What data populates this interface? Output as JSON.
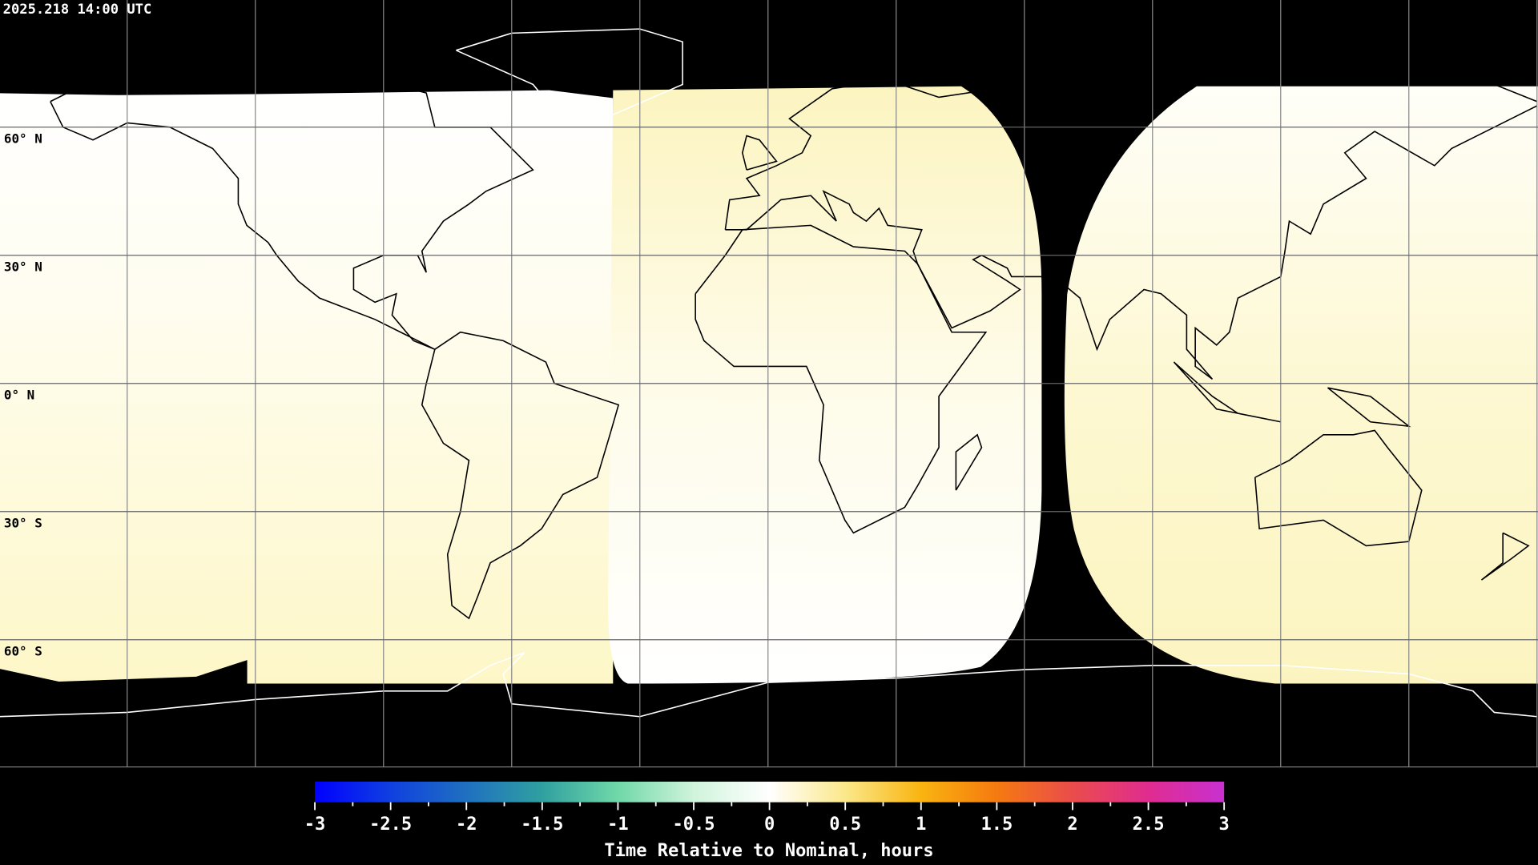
{
  "header": {
    "timestamp": "2025.218 14:00 UTC"
  },
  "map": {
    "projection": "equirectangular",
    "graticule_step_deg": 30,
    "lat_labels": [
      "60° N",
      "30° N",
      "0° N",
      "30° S",
      "60° S"
    ],
    "lat_values": [
      60,
      30,
      0,
      -30,
      -60
    ],
    "background_color": "#000000",
    "no_data_color": "#000000"
  },
  "colorbar": {
    "title": "Time Relative to Nominal, hours",
    "min": -3,
    "max": 3,
    "tick_labels": [
      "-3",
      "-2.5",
      "-2",
      "-1.5",
      "-1",
      "-0.5",
      "0",
      "0.5",
      "1",
      "1.5",
      "2",
      "2.5",
      "3"
    ],
    "tick_values": [
      -3,
      -2.5,
      -2,
      -1.5,
      -1,
      -0.5,
      0,
      0.5,
      1,
      1.5,
      2,
      2.5,
      3
    ],
    "colorscale": [
      {
        "v": -3,
        "c": "#0000ff"
      },
      {
        "v": -2.5,
        "c": "#1040e0"
      },
      {
        "v": -2,
        "c": "#1f70c0"
      },
      {
        "v": -1.5,
        "c": "#30a0a0"
      },
      {
        "v": -1,
        "c": "#70d8a8"
      },
      {
        "v": -0.5,
        "c": "#d0f4dc"
      },
      {
        "v": 0,
        "c": "#ffffff"
      },
      {
        "v": 0.5,
        "c": "#fbe88a"
      },
      {
        "v": 1,
        "c": "#f9b410"
      },
      {
        "v": 1.5,
        "c": "#f57a10"
      },
      {
        "v": 2,
        "c": "#ea4c4c"
      },
      {
        "v": 2.5,
        "c": "#e02c90"
      },
      {
        "v": 3,
        "c": "#c830d0"
      }
    ]
  }
}
